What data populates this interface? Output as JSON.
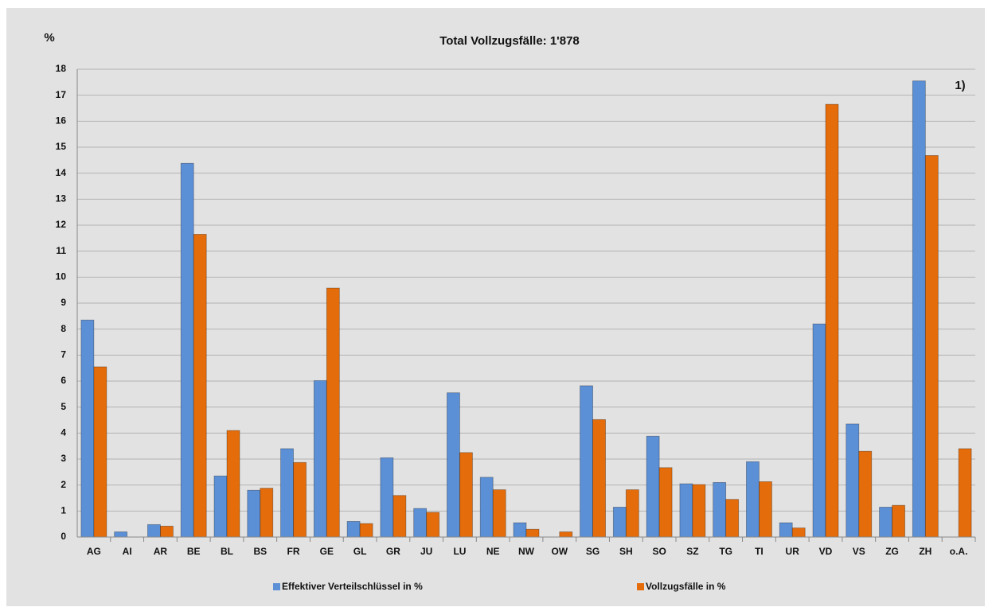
{
  "chart_data": {
    "type": "bar",
    "title": "Total Vollzugsfälle: 1'878",
    "y_label": "%",
    "annotation": "1)",
    "categories": [
      "AG",
      "AI",
      "AR",
      "BE",
      "BL",
      "BS",
      "FR",
      "GE",
      "GL",
      "GR",
      "JU",
      "LU",
      "NE",
      "NW",
      "OW",
      "SG",
      "SH",
      "SO",
      "SZ",
      "TG",
      "TI",
      "UR",
      "VD",
      "VS",
      "ZG",
      "ZH",
      "o.A."
    ],
    "series": [
      {
        "name": "Effektiver Verteilschlüssel in %",
        "color": "#5b8fd6",
        "values": [
          8.35,
          0.2,
          0.48,
          14.38,
          2.35,
          1.8,
          3.4,
          6.02,
          0.6,
          3.05,
          1.1,
          5.55,
          2.3,
          0.55,
          0,
          5.82,
          1.15,
          3.88,
          2.05,
          2.1,
          2.9,
          0.55,
          8.2,
          4.35,
          1.15,
          17.55,
          0
        ]
      },
      {
        "name": "Vollzugsfälle in %",
        "color": "#e46c0a",
        "values": [
          6.55,
          0,
          0.42,
          11.65,
          4.1,
          1.88,
          2.87,
          9.58,
          0.52,
          1.6,
          0.95,
          3.25,
          1.82,
          0.3,
          0.2,
          4.52,
          1.82,
          2.67,
          2.02,
          1.45,
          2.13,
          0.35,
          16.65,
          3.3,
          1.22,
          14.68,
          3.4
        ]
      }
    ],
    "ylim": [
      0,
      18
    ],
    "yticks": [
      0,
      1,
      2,
      3,
      4,
      5,
      6,
      7,
      8,
      9,
      10,
      11,
      12,
      13,
      14,
      15,
      16,
      17,
      18
    ],
    "grid": true,
    "legend": "bottom"
  }
}
